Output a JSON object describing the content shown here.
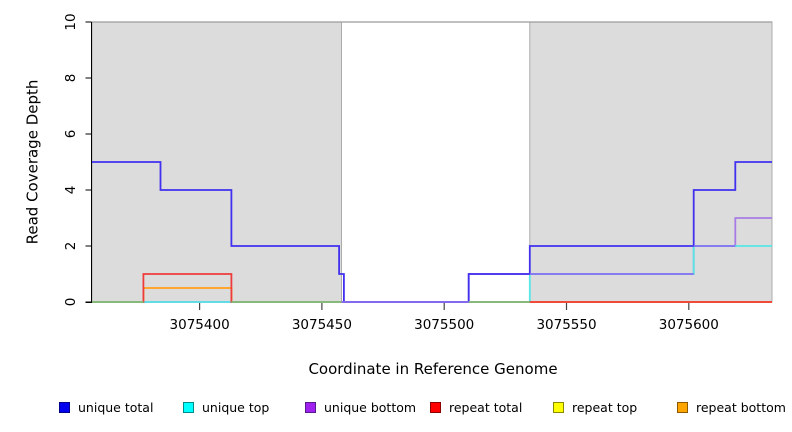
{
  "chart_data": {
    "type": "line",
    "subtype": "step-coverage-plot",
    "title": "",
    "xlabel": "Coordinate in Reference Genome",
    "ylabel": "Read Coverage Depth",
    "xlim": [
      3075356,
      3075634
    ],
    "ylim": [
      0,
      10
    ],
    "x_ticks": [
      3075400,
      3075450,
      3075500,
      3075550,
      3075600
    ],
    "y_ticks": [
      0,
      2,
      4,
      6,
      8,
      10
    ],
    "grid": false,
    "legend_position": "bottom",
    "plot_bg": "#ffffff",
    "shaded_region_color": "#dcdcdc",
    "shaded_region_border": "#ababab",
    "top_border_color": "#9b9b9b",
    "shaded_regions": [
      {
        "x0": 3075356,
        "x1": 3075458
      },
      {
        "x0": 3075535,
        "x1": 3075634
      }
    ],
    "series": [
      {
        "name": "unique total",
        "legend_color": "#0000ee",
        "legend_border": "#00008b",
        "line_color": "#4130ef",
        "z": 6,
        "steps": [
          [
            3075356,
            5
          ],
          [
            3075384,
            4
          ],
          [
            3075413,
            2
          ],
          [
            3075457,
            1
          ],
          [
            3075459,
            0
          ],
          [
            3075510,
            1
          ],
          [
            3075535,
            2
          ],
          [
            3075602,
            4
          ],
          [
            3075619,
            5
          ]
        ]
      },
      {
        "name": "unique top",
        "legend_color": "#00ffff",
        "legend_border": "#008b8b",
        "line_color": "#55e6e6",
        "z": 4,
        "steps": [
          [
            3075356,
            0
          ],
          [
            3075535,
            1
          ],
          [
            3075602,
            2
          ]
        ]
      },
      {
        "name": "unique bottom",
        "legend_color": "#a020f0",
        "legend_border": "#551a8b",
        "line_color": "#a77de5",
        "z": 3,
        "steps": [
          [
            3075356,
            0
          ],
          [
            3075510,
            1
          ],
          [
            3075602,
            2
          ],
          [
            3075619,
            3
          ]
        ]
      },
      {
        "name": "repeat total",
        "legend_color": "#ff0000",
        "legend_border": "#8b0000",
        "line_color": "#ee3b3b",
        "z": 5,
        "steps": [
          [
            3075356,
            0
          ],
          [
            3075377,
            1
          ],
          [
            3075413,
            0
          ]
        ]
      },
      {
        "name": "repeat top",
        "legend_color": "#ffff00",
        "legend_border": "#8b8b00",
        "line_color": "#ffee00",
        "z": 1,
        "steps": [
          [
            3075356,
            0
          ],
          [
            3075377,
            0.5
          ],
          [
            3075413,
            0
          ]
        ]
      },
      {
        "name": "repeat bottom",
        "legend_color": "#ffa500",
        "legend_border": "#8b5a00",
        "line_color": "#ff9d2e",
        "z": 2,
        "steps": [
          [
            3075356,
            0
          ],
          [
            3075377,
            0.5
          ],
          [
            3075413,
            0
          ]
        ]
      }
    ],
    "overlay_segments": [
      {
        "y": 0,
        "x0": 3075356,
        "x1": 3075377,
        "color": "#7fc47f"
      },
      {
        "y": 0,
        "x0": 3075413,
        "x1": 3075458,
        "color": "#7fc47f"
      },
      {
        "y": 0,
        "x0": 3075510,
        "x1": 3075535,
        "color": "#7fc47f"
      },
      {
        "y": 0,
        "x0": 3075458,
        "x1": 3075510,
        "color": "#8a70f0"
      },
      {
        "y": 1,
        "x0": 3075535,
        "x1": 3075602,
        "color": "#8a70f0"
      },
      {
        "y": 2,
        "x0": 3075602,
        "x1": 3075619,
        "color": "#8a70f0"
      }
    ]
  }
}
